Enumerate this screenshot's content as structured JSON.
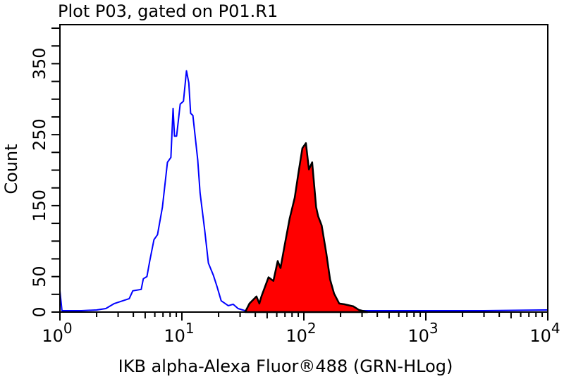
{
  "chart_data": {
    "type": "area",
    "title": "Plot P03, gated on P01.R1",
    "xlabel": "IKB alpha-Alexa Fluor®488 (GRN-HLog)",
    "ylabel": "Count",
    "x_scale": "log",
    "xlim": [
      1,
      10000
    ],
    "ylim": [
      0,
      405
    ],
    "x_ticks": [
      {
        "base": "10",
        "exp": "0",
        "value": 1
      },
      {
        "base": "10",
        "exp": "1",
        "value": 10
      },
      {
        "base": "10",
        "exp": "2",
        "value": 100
      },
      {
        "base": "10",
        "exp": "3",
        "value": 1000
      },
      {
        "base": "10",
        "exp": "4",
        "value": 10000
      }
    ],
    "y_ticks": [
      {
        "label": "0",
        "value": 0
      },
      {
        "label": "50",
        "value": 50
      },
      {
        "label": "150",
        "value": 150
      },
      {
        "label": "250",
        "value": 250
      },
      {
        "label": "350",
        "value": 350
      }
    ],
    "y_minor_step": 25,
    "grid": false,
    "series": [
      {
        "style": "outline",
        "color": "#0000ff",
        "points": [
          [
            1,
            30
          ],
          [
            1.04,
            2
          ],
          [
            1.5,
            2
          ],
          [
            2,
            3
          ],
          [
            2.38,
            5
          ],
          [
            2.79,
            12
          ],
          [
            3.7,
            19
          ],
          [
            3.96,
            30
          ],
          [
            4.64,
            32
          ],
          [
            4.83,
            47
          ],
          [
            5.17,
            50
          ],
          [
            5.45,
            72
          ],
          [
            5.9,
            102
          ],
          [
            6.31,
            109
          ],
          [
            6.93,
            148
          ],
          [
            7.61,
            211
          ],
          [
            8.13,
            218
          ],
          [
            8.47,
            287
          ],
          [
            8.69,
            248
          ],
          [
            9.05,
            248
          ],
          [
            9.68,
            293
          ],
          [
            10.3,
            297
          ],
          [
            10.9,
            340
          ],
          [
            11.4,
            323
          ],
          [
            11.8,
            280
          ],
          [
            12.3,
            277
          ],
          [
            13.5,
            214
          ],
          [
            14.1,
            168
          ],
          [
            15.4,
            115
          ],
          [
            16.5,
            69
          ],
          [
            18.1,
            52
          ],
          [
            19.4,
            36
          ],
          [
            21,
            16
          ],
          [
            24,
            9
          ],
          [
            26.3,
            11
          ],
          [
            28.9,
            5
          ],
          [
            34.4,
            1
          ],
          [
            60,
            2
          ],
          [
            100,
            1
          ],
          [
            300,
            2
          ],
          [
            1000,
            2
          ],
          [
            3000,
            2
          ],
          [
            10000,
            3
          ]
        ]
      },
      {
        "style": "filled",
        "color": "#ff0000",
        "outline_color": "#000000",
        "points": [
          [
            33,
            0
          ],
          [
            35.8,
            12
          ],
          [
            40.9,
            22
          ],
          [
            43.2,
            12
          ],
          [
            44.9,
            22
          ],
          [
            51.3,
            49
          ],
          [
            56.3,
            44
          ],
          [
            61,
            72
          ],
          [
            64.4,
            62
          ],
          [
            69.7,
            95
          ],
          [
            76.5,
            132
          ],
          [
            84.1,
            161
          ],
          [
            89.9,
            194
          ],
          [
            97.3,
            231
          ],
          [
            104,
            238
          ],
          [
            110,
            201
          ],
          [
            117,
            211
          ],
          [
            126,
            148
          ],
          [
            131,
            135
          ],
          [
            140,
            122
          ],
          [
            153,
            82
          ],
          [
            164,
            46
          ],
          [
            177,
            26
          ],
          [
            195,
            12
          ],
          [
            214,
            11
          ],
          [
            255,
            8
          ],
          [
            283,
            3
          ],
          [
            333,
            0
          ]
        ]
      }
    ]
  }
}
